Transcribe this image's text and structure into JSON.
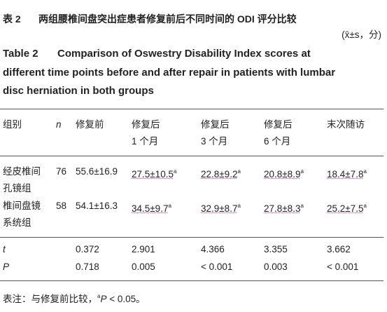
{
  "title": {
    "label": "表 2",
    "text": "两组腰椎间盘突出症患者修复前后不同时间的 ODI 评分比较",
    "unit": "(x̄±s，分)"
  },
  "title_en": {
    "label": "Table 2",
    "lines": [
      "Comparison of Oswestry Disability Index scores at",
      "different time points before and after repair in patients with lumbar",
      "disc herniation in both groups"
    ]
  },
  "table": {
    "header": [
      [
        "组别"
      ],
      [
        "n"
      ],
      [
        "修复前"
      ],
      [
        "修复后",
        "1 个月"
      ],
      [
        "修复后",
        "3 个月"
      ],
      [
        "修复后",
        "6 个月"
      ],
      [
        "末次随访"
      ]
    ],
    "groups": [
      {
        "label": [
          "经皮椎间",
          "孔镜组"
        ],
        "n": "76",
        "values": [
          "55.6±16.9",
          {
            "text": "27.5±10.5",
            "sup": "a"
          },
          {
            "text": "22.8±9.2",
            "sup": "a"
          },
          {
            "text": "20.8±8.9",
            "sup": "a"
          },
          {
            "text": "18.4±7.8",
            "sup": "a"
          }
        ]
      },
      {
        "label": [
          "椎间盘镜",
          "系统组"
        ],
        "n": "58",
        "values": [
          "54.1±16.3",
          {
            "text": "34.5±9.7",
            "sup": "a"
          },
          {
            "text": "32.9±8.7",
            "sup": "a"
          },
          {
            "text": "27.8±8.3",
            "sup": "a"
          },
          {
            "text": "25.2±7.5",
            "sup": "a"
          }
        ]
      }
    ],
    "stats": [
      {
        "label": "t",
        "values": [
          "0.372",
          "2.901",
          "4.366",
          "3.355",
          "3.662"
        ]
      },
      {
        "label": "P",
        "values": [
          "0.718",
          "0.005",
          "< 0.001",
          "0.003",
          "< 0.001"
        ]
      }
    ]
  },
  "footnote": {
    "prefix": "表注：与修复前比较，",
    "sup": "a",
    "p": "P",
    "suffix": " < 0.05。"
  }
}
